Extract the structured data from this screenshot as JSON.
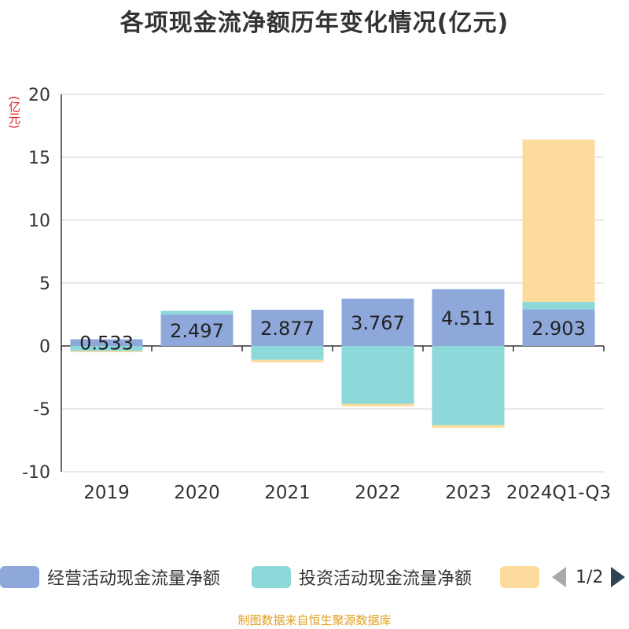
{
  "title": "各项现金流净额历年变化情况(亿元)",
  "unit_label": "(亿元)",
  "footer": "制图数据来自恒生聚源数据库",
  "legend": {
    "items": [
      {
        "label": "经营活动现金流量净额",
        "color": "#8fa8dc"
      },
      {
        "label": "投资活动现金流量净额",
        "color": "#8dd8d8"
      },
      {
        "label": "",
        "color": "#fddb9c"
      }
    ],
    "page": "1/2"
  },
  "chart_data": {
    "type": "bar",
    "stacked": true,
    "categories": [
      "2019",
      "2020",
      "2021",
      "2022",
      "2023",
      "2024Q1-Q3"
    ],
    "series": [
      {
        "name": "经营活动现金流量净额",
        "color": "#8fa8dc",
        "values": [
          0.533,
          2.497,
          2.877,
          3.767,
          4.511,
          2.903
        ],
        "show_labels": true
      },
      {
        "name": "投资活动现金流量净额",
        "color": "#8dd8d8",
        "values": [
          -0.4,
          0.3,
          -1.1,
          -4.6,
          -6.3,
          0.6
        ],
        "show_labels": false
      },
      {
        "name": "",
        "color": "#fddb9c",
        "values": [
          -0.1,
          0,
          -0.2,
          -0.2,
          -0.2,
          12.9
        ],
        "show_labels": false
      }
    ],
    "ylim": [
      -10,
      20
    ],
    "yticks": [
      -10,
      -5,
      0,
      5,
      10,
      15,
      20
    ],
    "grid": true,
    "legend_position": "bottom"
  }
}
